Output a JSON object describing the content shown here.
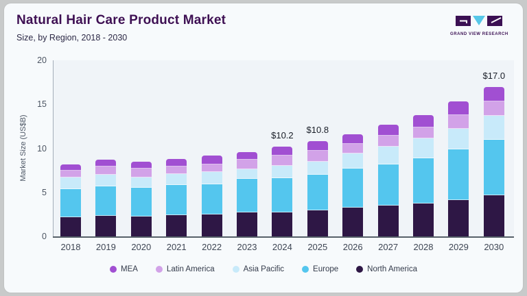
{
  "header": {
    "title": "Natural Hair Care Product Market",
    "subtitle": "Size, by Region, 2018 - 2030",
    "logo_text": "GRAND VIEW RESEARCH"
  },
  "chart_data": {
    "type": "bar",
    "stacked": true,
    "title": "Natural Hair Care Product Market",
    "subtitle": "Size, by Region, 2018 - 2030",
    "xlabel": "",
    "ylabel": "Market Size (US$B)",
    "ylim": [
      0,
      20
    ],
    "yticks": [
      0,
      5,
      10,
      15,
      20
    ],
    "grid": false,
    "legend_position": "bottom",
    "categories": [
      "2018",
      "2019",
      "2020",
      "2021",
      "2022",
      "2023",
      "2024",
      "2025",
      "2026",
      "2027",
      "2028",
      "2029",
      "2030"
    ],
    "series": [
      {
        "name": "North America",
        "color": "#2e1745",
        "values": [
          2.2,
          2.35,
          2.25,
          2.4,
          2.45,
          2.7,
          2.75,
          2.95,
          3.25,
          3.5,
          3.75,
          4.15,
          4.65
        ]
      },
      {
        "name": "Europe",
        "color": "#54c6ee",
        "values": [
          3.2,
          3.35,
          3.25,
          3.4,
          3.5,
          3.8,
          3.9,
          4.05,
          4.45,
          4.7,
          5.15,
          5.75,
          6.35
        ]
      },
      {
        "name": "Asia Pacific",
        "color": "#c8eafa",
        "values": [
          1.3,
          1.3,
          1.2,
          1.3,
          1.4,
          1.1,
          1.35,
          1.5,
          1.7,
          2.0,
          2.2,
          2.35,
          2.7
        ]
      },
      {
        "name": "Latin America",
        "color": "#d2a2e8",
        "values": [
          0.8,
          0.9,
          1.0,
          0.85,
          0.85,
          1.1,
          1.2,
          1.25,
          1.1,
          1.25,
          1.3,
          1.5,
          1.65
        ]
      },
      {
        "name": "MEA",
        "color": "#a14fd2",
        "values": [
          0.7,
          0.8,
          0.8,
          0.85,
          1.0,
          0.9,
          1.0,
          1.05,
          1.1,
          1.25,
          1.4,
          1.55,
          1.65
        ]
      }
    ],
    "totals": [
      8.2,
      8.7,
      8.5,
      8.8,
      9.2,
      9.6,
      10.2,
      10.8,
      11.6,
      12.7,
      13.8,
      15.3,
      17.0
    ],
    "legend_order": [
      "MEA",
      "Latin America",
      "Asia Pacific",
      "Europe",
      "North America"
    ],
    "annotations": [
      {
        "category": "2024",
        "text": "$10.2"
      },
      {
        "category": "2025",
        "text": "$10.8"
      },
      {
        "category": "2030",
        "text": "$17.0"
      }
    ]
  },
  "colors": {
    "title": "#3e1053",
    "subtitle": "#2b2845",
    "card_bg": "#f7fafc",
    "plot_bg": "#f0f4f8",
    "logo_dark": "#3b1053",
    "logo_blue": "#56c7e8"
  }
}
